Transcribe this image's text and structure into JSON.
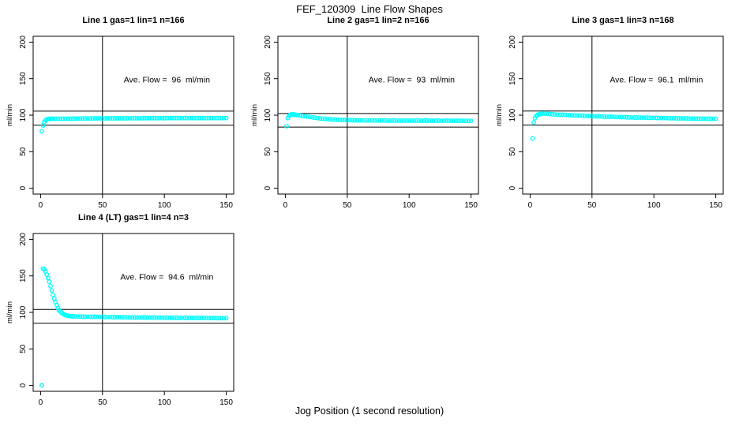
{
  "title": "FEF_120309  Line Flow Shapes",
  "xlabel": "Jog Position (1 second resolution)",
  "colors": {
    "points": "#00FFFF",
    "axis": "#000000",
    "background": "#FFFFFF",
    "text": "#000000"
  },
  "chart_data": [
    {
      "type": "scatter",
      "title": "Line 1 gas=1 lin=1 n=166",
      "annotation": "Ave. Flow =  96  ml/min",
      "ave_flow_ml_min": 96,
      "n": 166,
      "ylabel": "ml/min",
      "xlim": [
        0,
        150
      ],
      "ylim": [
        0,
        200
      ],
      "xticks": [
        0,
        50,
        100,
        150
      ],
      "yticks": [
        0,
        50,
        100,
        150,
        200
      ],
      "vline_x": 50,
      "hlines_y": [
        105.6,
        86.4
      ],
      "marker": "open-circle",
      "points": [
        [
          1,
          78
        ],
        [
          2,
          86
        ],
        [
          3,
          90.5
        ],
        [
          4,
          93
        ],
        [
          5,
          94
        ],
        [
          6,
          94.5
        ],
        [
          7,
          95
        ],
        [
          8,
          95
        ],
        [
          9,
          95
        ],
        [
          10,
          95
        ],
        [
          12,
          95.1
        ],
        [
          14,
          95.1
        ],
        [
          16,
          95.2
        ],
        [
          18,
          95.2
        ],
        [
          20,
          95.3
        ],
        [
          22,
          95.3
        ],
        [
          24,
          95.3
        ],
        [
          26,
          95.4
        ],
        [
          28,
          95.4
        ],
        [
          30,
          95.4
        ],
        [
          32,
          95.5
        ],
        [
          34,
          95.5
        ],
        [
          36,
          95.5
        ],
        [
          38,
          95.5
        ],
        [
          40,
          95.5
        ],
        [
          42,
          95.6
        ],
        [
          44,
          95.6
        ],
        [
          46,
          95.6
        ],
        [
          48,
          95.6
        ],
        [
          50,
          95.6
        ],
        [
          52,
          95.6
        ],
        [
          54,
          95.7
        ],
        [
          56,
          95.7
        ],
        [
          58,
          95.7
        ],
        [
          60,
          95.7
        ],
        [
          62,
          95.7
        ],
        [
          64,
          95.7
        ],
        [
          66,
          95.7
        ],
        [
          68,
          95.8
        ],
        [
          70,
          95.8
        ],
        [
          72,
          95.8
        ],
        [
          74,
          95.8
        ],
        [
          76,
          95.8
        ],
        [
          78,
          95.8
        ],
        [
          80,
          95.8
        ],
        [
          82,
          95.8
        ],
        [
          84,
          95.9
        ],
        [
          86,
          95.9
        ],
        [
          88,
          95.9
        ],
        [
          90,
          95.9
        ],
        [
          92,
          95.9
        ],
        [
          94,
          95.9
        ],
        [
          96,
          95.9
        ],
        [
          98,
          95.9
        ],
        [
          100,
          95.9
        ],
        [
          102,
          96
        ],
        [
          104,
          96
        ],
        [
          106,
          96
        ],
        [
          108,
          96
        ],
        [
          110,
          96
        ],
        [
          112,
          96
        ],
        [
          114,
          96
        ],
        [
          116,
          96
        ],
        [
          118,
          96
        ],
        [
          120,
          96
        ],
        [
          122,
          96
        ],
        [
          124,
          96
        ],
        [
          126,
          96
        ],
        [
          128,
          96
        ],
        [
          130,
          96
        ],
        [
          132,
          96
        ],
        [
          134,
          96
        ],
        [
          136,
          96
        ],
        [
          138,
          96
        ],
        [
          140,
          96
        ],
        [
          142,
          96
        ],
        [
          144,
          96
        ],
        [
          146,
          96
        ],
        [
          148,
          96
        ],
        [
          150,
          96
        ]
      ]
    },
    {
      "type": "scatter",
      "title": "Line 2 gas=1 lin=2 n=166",
      "annotation": "Ave. Flow =  93  ml/min",
      "ave_flow_ml_min": 93,
      "n": 166,
      "ylabel": "ml/min",
      "xlim": [
        0,
        150
      ],
      "ylim": [
        0,
        200
      ],
      "xticks": [
        0,
        50,
        100,
        150
      ],
      "yticks": [
        0,
        50,
        100,
        150,
        200
      ],
      "vline_x": 50,
      "hlines_y": [
        102.3,
        83.7
      ],
      "marker": "open-circle",
      "points": [
        [
          1,
          85
        ],
        [
          2,
          96
        ],
        [
          3,
          99
        ],
        [
          4,
          100.5
        ],
        [
          5,
          101
        ],
        [
          6,
          101
        ],
        [
          7,
          100.8
        ],
        [
          8,
          100.5
        ],
        [
          9,
          100.3
        ],
        [
          10,
          100
        ],
        [
          12,
          99.5
        ],
        [
          14,
          99
        ],
        [
          16,
          98.5
        ],
        [
          18,
          98
        ],
        [
          20,
          97.5
        ],
        [
          22,
          97
        ],
        [
          24,
          96.5
        ],
        [
          26,
          96
        ],
        [
          28,
          95.5
        ],
        [
          30,
          95.2
        ],
        [
          32,
          95
        ],
        [
          34,
          94.7
        ],
        [
          36,
          94.5
        ],
        [
          38,
          94.2
        ],
        [
          40,
          94
        ],
        [
          42,
          93.8
        ],
        [
          44,
          93.6
        ],
        [
          46,
          93.5
        ],
        [
          48,
          93.4
        ],
        [
          50,
          93.3
        ],
        [
          52,
          93.2
        ],
        [
          54,
          93.1
        ],
        [
          56,
          93
        ],
        [
          58,
          93
        ],
        [
          60,
          92.9
        ],
        [
          62,
          92.9
        ],
        [
          64,
          92.8
        ],
        [
          66,
          92.8
        ],
        [
          68,
          92.8
        ],
        [
          70,
          92.8
        ],
        [
          72,
          92.7
        ],
        [
          74,
          92.7
        ],
        [
          76,
          92.7
        ],
        [
          78,
          92.7
        ],
        [
          80,
          92.7
        ],
        [
          82,
          92.6
        ],
        [
          84,
          92.6
        ],
        [
          86,
          92.6
        ],
        [
          88,
          92.6
        ],
        [
          90,
          92.6
        ],
        [
          92,
          92.6
        ],
        [
          94,
          92.5
        ],
        [
          96,
          92.5
        ],
        [
          98,
          92.5
        ],
        [
          100,
          92.5
        ],
        [
          102,
          92.5
        ],
        [
          104,
          92.5
        ],
        [
          106,
          92.5
        ],
        [
          108,
          92.5
        ],
        [
          110,
          92.4
        ],
        [
          112,
          92.4
        ],
        [
          114,
          92.4
        ],
        [
          116,
          92.4
        ],
        [
          118,
          92.4
        ],
        [
          120,
          92.4
        ],
        [
          122,
          92.4
        ],
        [
          124,
          92.4
        ],
        [
          126,
          92.3
        ],
        [
          128,
          92.3
        ],
        [
          130,
          92.3
        ],
        [
          132,
          92.3
        ],
        [
          134,
          92.3
        ],
        [
          136,
          92.3
        ],
        [
          138,
          92.3
        ],
        [
          140,
          92.3
        ],
        [
          142,
          92.3
        ],
        [
          144,
          92.2
        ],
        [
          146,
          92.2
        ],
        [
          148,
          92.2
        ],
        [
          150,
          92.2
        ]
      ]
    },
    {
      "type": "scatter",
      "title": "Line 3 gas=1 lin=3 n=168",
      "annotation": "Ave. Flow =  96.1  ml/min",
      "ave_flow_ml_min": 96.1,
      "n": 168,
      "ylabel": "ml/min",
      "xlim": [
        0,
        150
      ],
      "ylim": [
        0,
        200
      ],
      "xticks": [
        0,
        50,
        100,
        150
      ],
      "yticks": [
        0,
        50,
        100,
        150,
        200
      ],
      "vline_x": 50,
      "hlines_y": [
        105.7,
        86.5
      ],
      "marker": "open-circle",
      "points": [
        [
          2,
          68
        ],
        [
          3,
          90
        ],
        [
          4,
          96
        ],
        [
          5,
          99
        ],
        [
          6,
          100.5
        ],
        [
          7,
          101
        ],
        [
          8,
          101.5
        ],
        [
          9,
          102
        ],
        [
          10,
          102
        ],
        [
          12,
          102
        ],
        [
          14,
          101.8
        ],
        [
          16,
          101.5
        ],
        [
          18,
          101.3
        ],
        [
          20,
          101
        ],
        [
          22,
          100.8
        ],
        [
          24,
          100.6
        ],
        [
          26,
          100.5
        ],
        [
          28,
          100.3
        ],
        [
          30,
          100.2
        ],
        [
          32,
          100
        ],
        [
          34,
          99.8
        ],
        [
          36,
          99.7
        ],
        [
          38,
          99.5
        ],
        [
          40,
          99.3
        ],
        [
          42,
          99.2
        ],
        [
          44,
          99
        ],
        [
          46,
          98.9
        ],
        [
          48,
          98.8
        ],
        [
          50,
          98.6
        ],
        [
          52,
          98.5
        ],
        [
          54,
          98.4
        ],
        [
          56,
          98.3
        ],
        [
          58,
          98.2
        ],
        [
          60,
          98
        ],
        [
          62,
          97.9
        ],
        [
          64,
          97.8
        ],
        [
          66,
          97.7
        ],
        [
          68,
          97.6
        ],
        [
          70,
          97.5
        ],
        [
          72,
          97.4
        ],
        [
          74,
          97.3
        ],
        [
          76,
          97.2
        ],
        [
          78,
          97.1
        ],
        [
          80,
          97
        ],
        [
          82,
          96.9
        ],
        [
          84,
          96.8
        ],
        [
          86,
          96.8
        ],
        [
          88,
          96.7
        ],
        [
          90,
          96.6
        ],
        [
          92,
          96.5
        ],
        [
          94,
          96.5
        ],
        [
          96,
          96.4
        ],
        [
          98,
          96.3
        ],
        [
          100,
          96.3
        ],
        [
          102,
          96.2
        ],
        [
          104,
          96.1
        ],
        [
          106,
          96.1
        ],
        [
          108,
          96
        ],
        [
          110,
          96
        ],
        [
          112,
          95.9
        ],
        [
          114,
          95.8
        ],
        [
          116,
          95.8
        ],
        [
          118,
          95.7
        ],
        [
          120,
          95.7
        ],
        [
          122,
          95.6
        ],
        [
          124,
          95.6
        ],
        [
          126,
          95.5
        ],
        [
          128,
          95.5
        ],
        [
          130,
          95.4
        ],
        [
          132,
          95.4
        ],
        [
          134,
          95.3
        ],
        [
          136,
          95.3
        ],
        [
          138,
          95.2
        ],
        [
          140,
          95.2
        ],
        [
          142,
          95.1
        ],
        [
          144,
          95.1
        ],
        [
          146,
          95
        ],
        [
          148,
          95
        ],
        [
          150,
          95
        ]
      ]
    },
    {
      "type": "scatter",
      "title": "Line 4 (LT) gas=1 lin=4 n=3",
      "annotation": "Ave. Flow =  94.6  ml/min",
      "ave_flow_ml_min": 94.6,
      "n": 3,
      "ylabel": "ml/min",
      "xlim": [
        0,
        150
      ],
      "ylim": [
        0,
        200
      ],
      "xticks": [
        0,
        50,
        100,
        150
      ],
      "yticks": [
        0,
        50,
        100,
        150,
        200
      ],
      "vline_x": 50,
      "hlines_y": [
        104.1,
        85.1
      ],
      "marker": "open-circle",
      "points": [
        [
          1,
          0
        ],
        [
          2,
          160
        ],
        [
          3,
          159
        ],
        [
          4,
          156
        ],
        [
          5,
          152
        ],
        [
          6,
          147
        ],
        [
          7,
          142
        ],
        [
          8,
          136
        ],
        [
          9,
          130
        ],
        [
          10,
          124
        ],
        [
          11,
          119
        ],
        [
          12,
          114
        ],
        [
          13,
          110
        ],
        [
          14,
          106
        ],
        [
          15,
          103
        ],
        [
          16,
          101
        ],
        [
          17,
          99.5
        ],
        [
          18,
          98.2
        ],
        [
          19,
          97.2
        ],
        [
          20,
          96.4
        ],
        [
          21,
          95.8
        ],
        [
          22,
          95.4
        ],
        [
          23,
          95.1
        ],
        [
          24,
          94.9
        ],
        [
          25,
          94.7
        ],
        [
          26,
          94.6
        ],
        [
          28,
          94.5
        ],
        [
          30,
          94.4
        ],
        [
          32,
          94.3
        ],
        [
          34,
          94.2
        ],
        [
          36,
          94.1
        ],
        [
          38,
          94
        ],
        [
          40,
          94
        ],
        [
          42,
          93.9
        ],
        [
          44,
          93.9
        ],
        [
          46,
          93.8
        ],
        [
          48,
          93.8
        ],
        [
          50,
          93.7
        ],
        [
          52,
          93.7
        ],
        [
          54,
          93.6
        ],
        [
          56,
          93.6
        ],
        [
          58,
          93.5
        ],
        [
          60,
          93.5
        ],
        [
          62,
          93.4
        ],
        [
          64,
          93.4
        ],
        [
          66,
          93.3
        ],
        [
          68,
          93.3
        ],
        [
          70,
          93.3
        ],
        [
          72,
          93.2
        ],
        [
          74,
          93.2
        ],
        [
          76,
          93.1
        ],
        [
          78,
          93.1
        ],
        [
          80,
          93.1
        ],
        [
          82,
          93
        ],
        [
          84,
          93
        ],
        [
          86,
          93
        ],
        [
          88,
          92.9
        ],
        [
          90,
          92.9
        ],
        [
          92,
          92.9
        ],
        [
          94,
          92.8
        ],
        [
          96,
          92.8
        ],
        [
          98,
          92.8
        ],
        [
          100,
          92.7
        ],
        [
          102,
          92.7
        ],
        [
          104,
          92.7
        ],
        [
          106,
          92.6
        ],
        [
          108,
          92.6
        ],
        [
          110,
          92.6
        ],
        [
          112,
          92.5
        ],
        [
          114,
          92.5
        ],
        [
          116,
          92.5
        ],
        [
          118,
          92.5
        ],
        [
          120,
          92.4
        ],
        [
          122,
          92.4
        ],
        [
          124,
          92.4
        ],
        [
          126,
          92.4
        ],
        [
          128,
          92.3
        ],
        [
          130,
          92.3
        ],
        [
          132,
          92.3
        ],
        [
          134,
          92.3
        ],
        [
          136,
          92.2
        ],
        [
          138,
          92.2
        ],
        [
          140,
          92.2
        ],
        [
          142,
          92.2
        ],
        [
          144,
          92.1
        ],
        [
          146,
          92.1
        ],
        [
          148,
          92.1
        ],
        [
          150,
          92.1
        ]
      ]
    }
  ]
}
